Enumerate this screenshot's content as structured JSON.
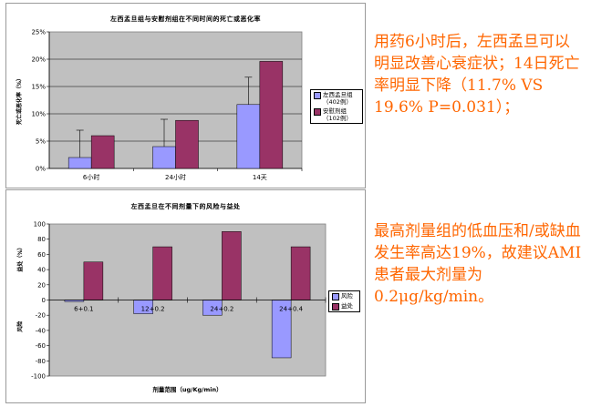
{
  "chart_data": [
    {
      "type": "bar",
      "title": "左西孟旦组与安慰剂组在不同时间的死亡或恶化率",
      "ylabel": "死亡或恶化率（%）",
      "categories": [
        "6小时",
        "24小时",
        "14天"
      ],
      "ylim": [
        0,
        25
      ],
      "yticks": [
        "0%",
        "5%",
        "10%",
        "15%",
        "20%",
        "25%"
      ],
      "grid": true,
      "legend_position": "right",
      "series": [
        {
          "name": "左西孟旦组\n（402例）",
          "values": [
            2,
            4,
            11.7
          ],
          "error_upper": [
            7,
            9,
            16.7
          ],
          "color": "#9999ff"
        },
        {
          "name": "安慰剂组\n（102例）",
          "values": [
            6,
            8.8,
            19.6
          ],
          "color": "#993366"
        }
      ]
    },
    {
      "type": "bar",
      "title": "左西孟旦在不同剂量下的风险与益处",
      "xlabel": "剂量范围（ug/Kg/min）",
      "ylabel_top": "益处（%）",
      "ylabel_bottom": "风险",
      "categories": [
        "6+0.1",
        "12+0.2",
        "24+0.2",
        "24+0.4"
      ],
      "ylim": [
        -100,
        100
      ],
      "yticks": [
        "-100",
        "-80",
        "-60",
        "-40",
        "-20",
        "0",
        "20",
        "40",
        "60",
        "80",
        "100"
      ],
      "grid": false,
      "legend_position": "right",
      "series": [
        {
          "name": "风险",
          "values": [
            -2,
            -18,
            -20,
            -76
          ],
          "color": "#9999ff"
        },
        {
          "name": "益处",
          "values": [
            50,
            70,
            90,
            70
          ],
          "color": "#993366"
        }
      ]
    }
  ],
  "notes": {
    "note1": "用药6小时后，左西孟旦可以明显改善心衰症状；14日死亡率明显下降（11.7% VS 19.6%  P=0.031）；",
    "note2": "最高剂量组的低血压和/或缺血发生率高达19%，故建议AMI患者最大剂量为0.2μg/kg/min。"
  }
}
